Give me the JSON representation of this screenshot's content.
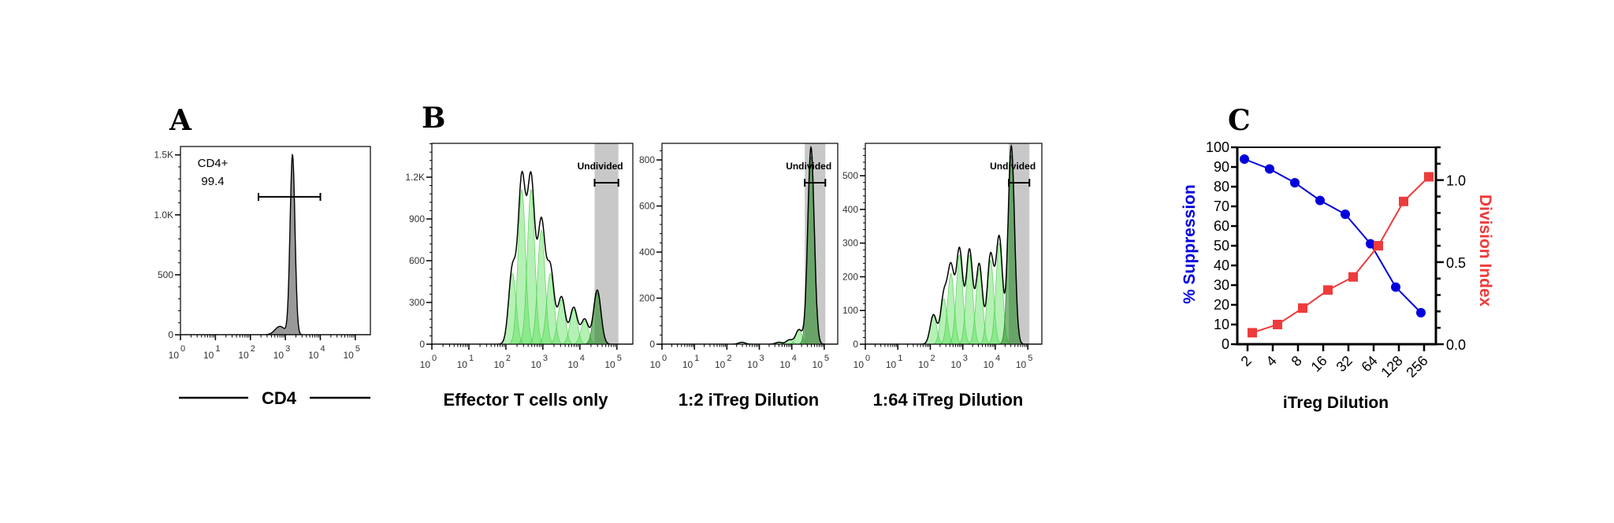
{
  "chart_data": [
    {
      "panel_label": "A",
      "type": "histogram",
      "xlabel": "CD4",
      "x_scale": "log",
      "xlim": [
        1,
        270000
      ],
      "ylim": [
        0,
        1570
      ],
      "x_ticks": {
        "base": "10",
        "exponents": [
          "0",
          "1",
          "2",
          "3",
          "4",
          "5"
        ]
      },
      "y_ticks": {
        "values": [
          0,
          500,
          1000,
          1500
        ],
        "labels": [
          "0",
          "500",
          "1.0K",
          "1.5K"
        ]
      },
      "fill_color": "#999999",
      "peaks": [
        {
          "x": 1600,
          "count": 1500,
          "spread": 0.07
        },
        {
          "x": 700,
          "count": 70,
          "spread": 0.14
        }
      ],
      "gate": {
        "label": "CD4+",
        "value": "99.4",
        "range": [
          170,
          10000
        ],
        "count": 1150
      }
    },
    {
      "panel_label": "B",
      "type": "histogram",
      "caption": "Effector T cells only",
      "x_scale": "log",
      "xlim": [
        1,
        270000
      ],
      "ylim": [
        0,
        1443
      ],
      "x_ticks": {
        "base": "10",
        "exponents": [
          "0",
          "1",
          "2",
          "3",
          "4",
          "5"
        ]
      },
      "y_ticks": {
        "values": [
          0,
          300,
          600,
          900,
          1200
        ],
        "labels": [
          "0",
          "300",
          "600",
          "900",
          "1.2K"
        ]
      },
      "peaks": [
        {
          "x": 150,
          "count": 510
        },
        {
          "x": 270,
          "count": 1110
        },
        {
          "x": 480,
          "count": 1110
        },
        {
          "x": 910,
          "count": 820
        },
        {
          "x": 1600,
          "count": 510
        },
        {
          "x": 3200,
          "count": 320
        },
        {
          "x": 6800,
          "count": 250
        },
        {
          "x": 13500,
          "count": 170
        },
        {
          "x": 29500,
          "count": 370
        }
      ],
      "gate": {
        "label": "Undivided",
        "range": [
          25000,
          110000
        ],
        "count": 1160
      }
    },
    {
      "type": "histogram",
      "caption": "1:2 iTreg Dilution",
      "x_scale": "log",
      "xlim": [
        1,
        260000
      ],
      "ylim": [
        0,
        872
      ],
      "x_ticks": {
        "base": "10",
        "exponents": [
          "0",
          "1",
          "2",
          "3",
          "4",
          "5"
        ]
      },
      "y_ticks": {
        "values": [
          0,
          200,
          400,
          600,
          800
        ],
        "labels": [
          "0",
          "200",
          "400",
          "600",
          "800"
        ]
      },
      "peaks": [
        {
          "x": 290,
          "count": 8
        },
        {
          "x": 4000,
          "count": 8
        },
        {
          "x": 8500,
          "count": 18
        },
        {
          "x": 16600,
          "count": 60
        },
        {
          "x": 39000,
          "count": 814
        }
      ],
      "gate": {
        "label": "Undivided",
        "range": [
          25000,
          108000
        ],
        "count": 701
      }
    },
    {
      "type": "histogram",
      "caption": "1:64 iTreg Dilution",
      "x_scale": "log",
      "xlim": [
        1,
        270000
      ],
      "ylim": [
        0,
        596
      ],
      "x_ticks": {
        "base": "10",
        "exponents": [
          "0",
          "1",
          "2",
          "3",
          "4",
          "5"
        ]
      },
      "y_ticks": {
        "values": [
          0,
          100,
          200,
          300,
          400,
          500
        ],
        "labels": [
          "0",
          "100",
          "200",
          "300",
          "400",
          "500"
        ]
      },
      "peaks": [
        {
          "x": 125,
          "count": 83
        },
        {
          "x": 260,
          "count": 135
        },
        {
          "x": 430,
          "count": 210
        },
        {
          "x": 790,
          "count": 265
        },
        {
          "x": 1600,
          "count": 265
        },
        {
          "x": 3200,
          "count": 225
        },
        {
          "x": 7100,
          "count": 250
        },
        {
          "x": 13200,
          "count": 300
        },
        {
          "x": 31000,
          "count": 560
        }
      ],
      "gate": {
        "label": "Undivided",
        "range": [
          26000,
          112000
        ],
        "count": 479
      }
    },
    {
      "panel_label": "C",
      "type": "line",
      "xlabel": "iTreg Dilution",
      "categories": [
        "2",
        "4",
        "8",
        "16",
        "32",
        "64",
        "128",
        "256"
      ],
      "ylabel": "% Suppression",
      "y2label": "Division Index",
      "ylim": [
        0,
        100
      ],
      "y2lim": [
        0,
        1.2
      ],
      "y_ticks": [
        "0",
        "10",
        "20",
        "30",
        "40",
        "50",
        "60",
        "70",
        "80",
        "90",
        "100"
      ],
      "y2_ticks": [
        "0.0",
        "0.5",
        "1.0"
      ],
      "series": [
        {
          "name": "% Suppression",
          "axis": "left",
          "marker": "circle",
          "color": "#0000dd",
          "values": [
            94,
            89,
            82,
            73,
            66,
            51,
            29,
            16
          ]
        },
        {
          "name": "Division Index",
          "axis": "right",
          "marker": "square",
          "color": "#ee3b3b",
          "values": [
            0.07,
            0.12,
            0.22,
            0.33,
            0.41,
            0.6,
            0.87,
            1.02
          ]
        }
      ]
    }
  ]
}
